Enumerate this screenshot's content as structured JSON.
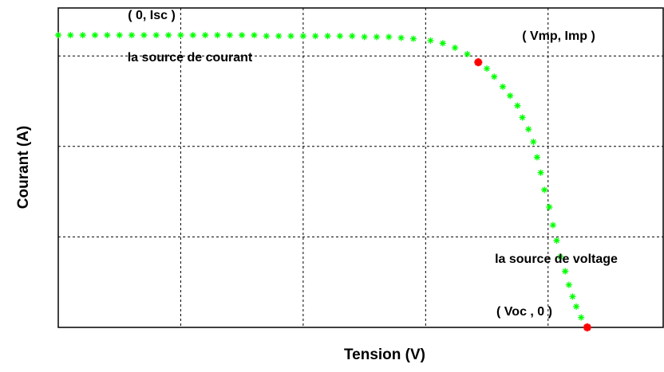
{
  "chart_data": {
    "type": "scatter",
    "xlabel": "Tension (V)",
    "ylabel": "Courant (A)",
    "xlim": [
      0,
      4.94
    ],
    "ylim": [
      0,
      3.53
    ],
    "xticks": [
      1,
      2,
      3,
      4
    ],
    "yticks": [
      1,
      2,
      3
    ],
    "grid": true,
    "series": [
      {
        "color": "#00ff00",
        "x": [
          0,
          0.1,
          0.2,
          0.3,
          0.4,
          0.5,
          0.6,
          0.7,
          0.8,
          0.9,
          1.0,
          1.1,
          1.2,
          1.3,
          1.4,
          1.5,
          1.6,
          1.7,
          1.8,
          1.9,
          2.0,
          2.1,
          2.2,
          2.3,
          2.4,
          2.5,
          2.6,
          2.7,
          2.8,
          2.9,
          3.04,
          3.14,
          3.24,
          3.34,
          3.43,
          3.5,
          3.56,
          3.63,
          3.69,
          3.75,
          3.79,
          3.84,
          3.88,
          3.91,
          3.94,
          3.97,
          4.01,
          4.04,
          4.07,
          4.1,
          4.14,
          4.17,
          4.2,
          4.23,
          4.27,
          4.32
        ],
        "values": [
          3.23,
          3.23,
          3.23,
          3.23,
          3.23,
          3.23,
          3.23,
          3.23,
          3.23,
          3.23,
          3.23,
          3.23,
          3.23,
          3.23,
          3.23,
          3.23,
          3.23,
          3.22,
          3.22,
          3.22,
          3.22,
          3.22,
          3.22,
          3.22,
          3.22,
          3.21,
          3.21,
          3.21,
          3.2,
          3.19,
          3.17,
          3.14,
          3.09,
          3.02,
          2.93,
          2.86,
          2.77,
          2.66,
          2.56,
          2.45,
          2.32,
          2.19,
          2.05,
          1.88,
          1.71,
          1.52,
          1.33,
          1.13,
          0.96,
          0.78,
          0.62,
          0.47,
          0.34,
          0.23,
          0.11,
          0
        ]
      },
      {
        "color": "#ff0000",
        "x": [
          3.43,
          4.32
        ],
        "values": [
          2.93,
          0
        ]
      }
    ],
    "annotations": [
      "( 0, Isc )",
      "la source de courant",
      "( Vmp, Imp )",
      "la source de voltage",
      "( Voc , 0 )"
    ]
  }
}
